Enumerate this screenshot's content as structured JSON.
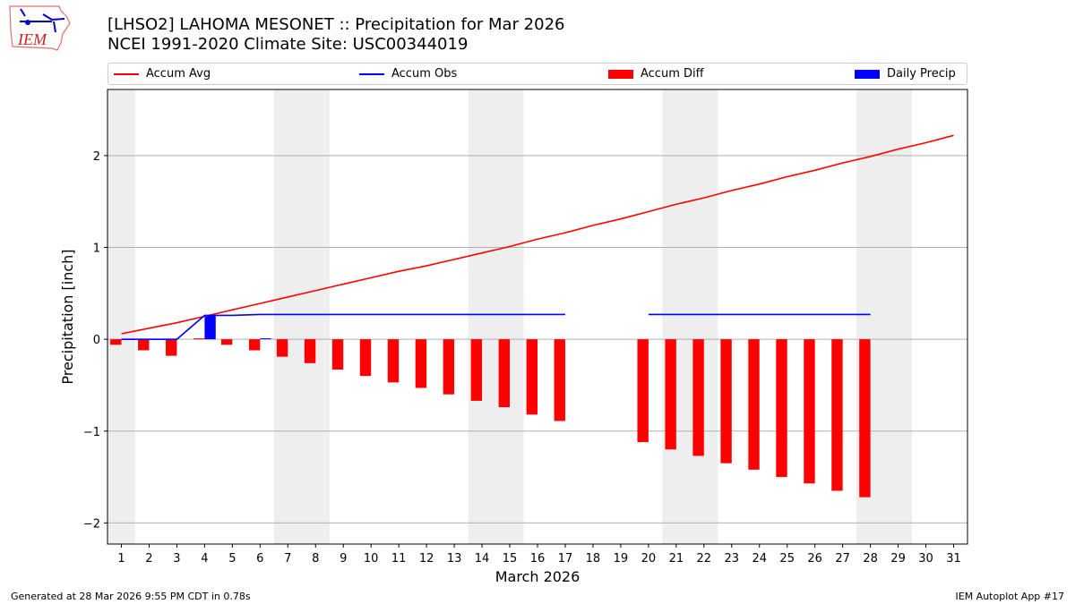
{
  "header": {
    "title_line1": "[LHSO2] LAHOMA MESONET :: Precipitation for Mar 2026",
    "title_line2": "NCEI 1991-2020 Climate Site: USC00344019"
  },
  "logo": {
    "text": "IEM"
  },
  "footer": {
    "left": "Generated at 28 Mar 2026 9:55 PM CDT in 0.78s",
    "right": "IEM Autoplot App #17"
  },
  "chart_data": {
    "type": "bar",
    "xlabel": "March 2026",
    "ylabel": "Precipitation [inch]",
    "xlim": [
      0.5,
      31.5
    ],
    "ylim": [
      -2.23,
      2.72
    ],
    "yticks": [
      -2,
      -1,
      0,
      1,
      2
    ],
    "ytick_labels": [
      "−2",
      "−1",
      "0",
      "1",
      "2"
    ],
    "grid": "horizontal",
    "legend_position": "top",
    "weekend_shading": [
      [
        0.5,
        1.5
      ],
      [
        6.5,
        8.5
      ],
      [
        13.5,
        15.5
      ],
      [
        20.5,
        22.5
      ],
      [
        27.5,
        29.5
      ]
    ],
    "x": [
      1,
      2,
      3,
      4,
      5,
      6,
      7,
      8,
      9,
      10,
      11,
      12,
      13,
      14,
      15,
      16,
      17,
      18,
      19,
      20,
      21,
      22,
      23,
      24,
      25,
      26,
      27,
      28,
      29,
      30,
      31
    ],
    "series": [
      {
        "name": "Accum Avg",
        "kind": "line",
        "color": "#ff0000",
        "values": [
          0.06,
          0.12,
          0.18,
          0.25,
          0.32,
          0.39,
          0.46,
          0.53,
          0.6,
          0.67,
          0.74,
          0.8,
          0.87,
          0.94,
          1.01,
          1.09,
          1.16,
          1.24,
          1.31,
          1.39,
          1.47,
          1.54,
          1.62,
          1.69,
          1.77,
          1.84,
          1.92,
          1.99,
          2.07,
          2.14,
          2.22
        ]
      },
      {
        "name": "Accum Obs",
        "kind": "line",
        "color": "#0000ff",
        "values": [
          0,
          0,
          0,
          0.26,
          0.26,
          0.27,
          0.27,
          0.27,
          0.27,
          0.27,
          0.27,
          0.27,
          0.27,
          0.27,
          0.27,
          0.27,
          0.27,
          null,
          null,
          0.27,
          0.27,
          0.27,
          0.27,
          0.27,
          0.27,
          0.27,
          0.27,
          0.27,
          null,
          null,
          null
        ]
      },
      {
        "name": "Accum Diff",
        "kind": "bar",
        "color": "#ff0000",
        "values": [
          -0.06,
          -0.12,
          -0.18,
          0.01,
          -0.06,
          -0.12,
          -0.19,
          -0.26,
          -0.33,
          -0.4,
          -0.47,
          -0.53,
          -0.6,
          -0.67,
          -0.74,
          -0.82,
          -0.89,
          null,
          null,
          -1.12,
          -1.2,
          -1.27,
          -1.35,
          -1.42,
          -1.5,
          -1.57,
          -1.65,
          -1.72,
          null,
          null,
          null
        ]
      },
      {
        "name": "Daily Precip",
        "kind": "bar",
        "color": "#0000ff",
        "values": [
          0,
          0,
          0,
          0.26,
          0,
          0.01,
          0,
          0,
          0,
          0,
          0,
          0,
          0,
          0,
          0,
          0,
          0,
          null,
          null,
          0,
          0,
          0,
          0,
          0,
          0,
          0,
          0,
          0,
          null,
          null,
          null
        ]
      }
    ]
  }
}
